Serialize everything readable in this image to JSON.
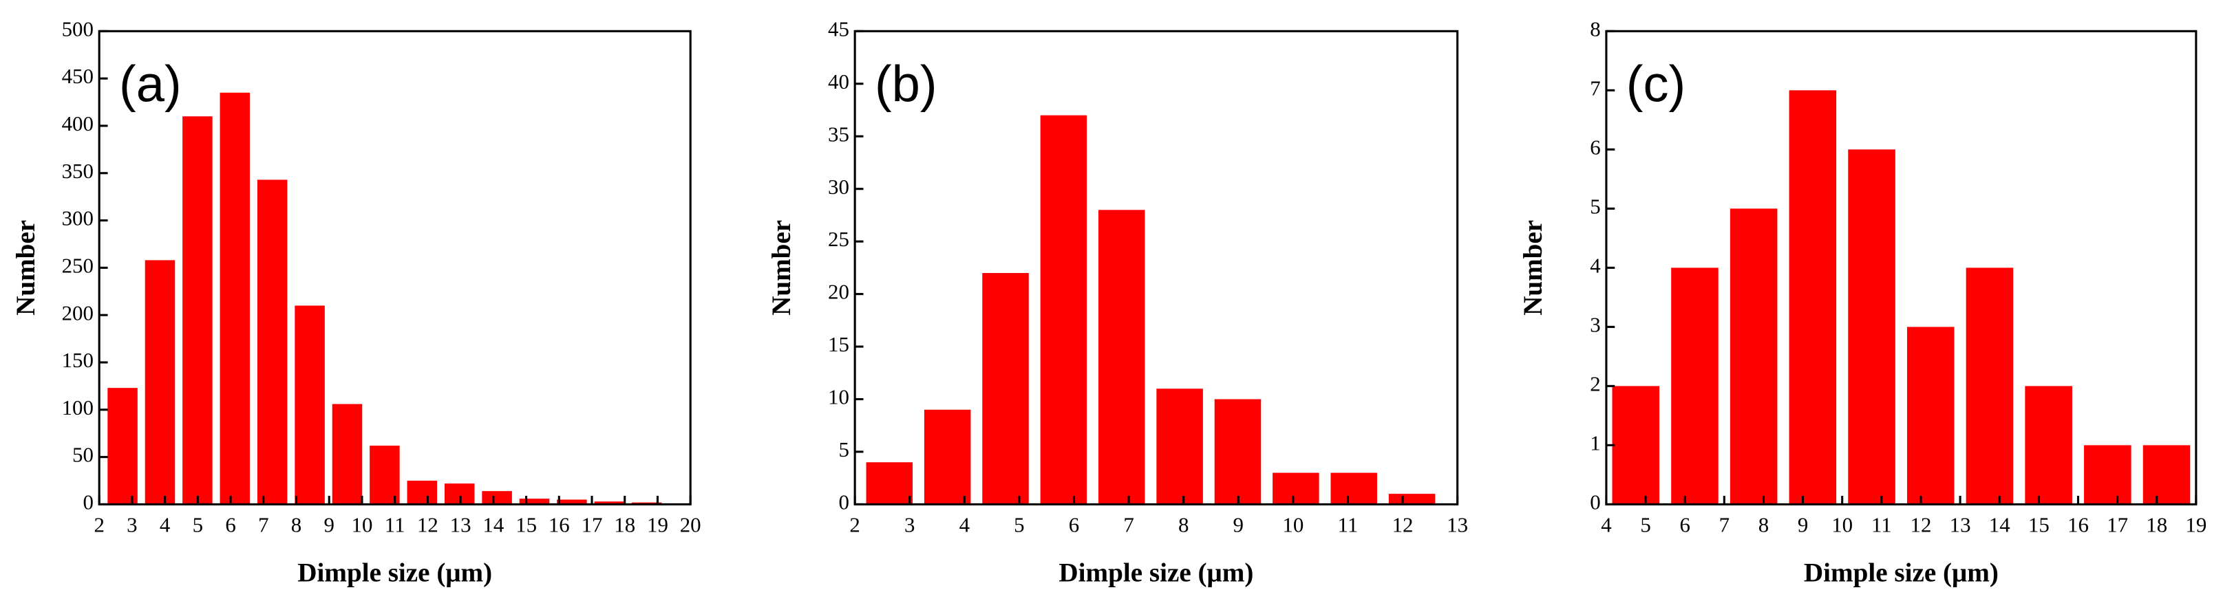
{
  "chart_data": [
    {
      "type": "histogram",
      "annotation": "(a)",
      "xlabel": "Dimple size (μm)",
      "ylabel": "Number",
      "color": "#ff0000",
      "bins": [
        2.14,
        3.28,
        4.42,
        5.56,
        6.7,
        7.84,
        8.98,
        10.12,
        11.26,
        12.4,
        13.54,
        14.68,
        15.82,
        16.96,
        18.1,
        19.24
      ],
      "values": [
        123,
        258,
        410,
        435,
        343,
        210,
        106,
        62,
        25,
        22,
        14,
        6,
        5,
        3,
        2
      ],
      "xlim": [
        2,
        20
      ],
      "xticks": [
        2,
        3,
        4,
        5,
        6,
        7,
        8,
        9,
        10,
        11,
        12,
        13,
        14,
        15,
        16,
        17,
        18,
        19,
        20
      ],
      "ylim": [
        0,
        500
      ],
      "yticks": [
        0,
        50,
        100,
        150,
        200,
        250,
        300,
        350,
        400,
        450,
        500
      ]
    },
    {
      "type": "histogram",
      "annotation": "(b)",
      "xlabel": "Dimple size (μm)",
      "ylabel": "Number",
      "color": "#ff0000",
      "bins": [
        2.1,
        3.16,
        4.22,
        5.28,
        6.34,
        7.4,
        8.46,
        9.52,
        10.58,
        11.64,
        12.7
      ],
      "values": [
        4,
        9,
        22,
        37,
        28,
        11,
        10,
        3,
        3,
        1
      ],
      "xlim": [
        2,
        13
      ],
      "xticks": [
        2,
        3,
        4,
        5,
        6,
        7,
        8,
        9,
        10,
        11,
        12,
        13
      ],
      "ylim": [
        0,
        45
      ],
      "yticks": [
        0,
        5,
        10,
        15,
        20,
        25,
        30,
        35,
        40,
        45
      ]
    },
    {
      "type": "histogram",
      "annotation": "(c)",
      "xlabel": "Dimple size (μm)",
      "ylabel": "Number",
      "color": "#ff0000",
      "bins": [
        4,
        5.5,
        7,
        8.5,
        10,
        11.5,
        13,
        14.5,
        16,
        17.5,
        19
      ],
      "values": [
        2,
        4,
        5,
        7,
        6,
        3,
        4,
        2,
        1,
        1
      ],
      "xlim": [
        4,
        19
      ],
      "xticks": [
        4,
        5,
        6,
        7,
        8,
        9,
        10,
        11,
        12,
        13,
        14,
        15,
        16,
        17,
        18,
        19
      ],
      "ylim": [
        0,
        8
      ],
      "yticks": [
        0,
        1,
        2,
        3,
        4,
        5,
        6,
        7,
        8
      ]
    }
  ]
}
